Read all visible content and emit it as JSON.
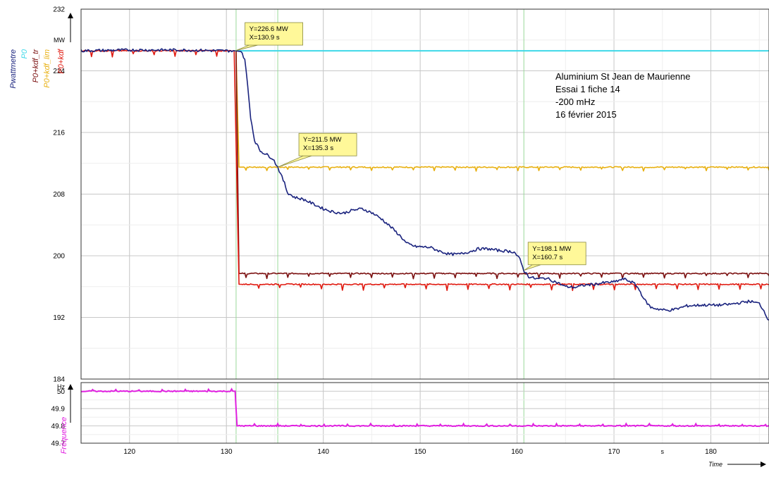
{
  "chart_data": [
    {
      "type": "line",
      "title": "",
      "ylabel": "MW",
      "xlabel": "",
      "xlim": [
        115,
        186
      ],
      "ylim": [
        184,
        232
      ],
      "y_ticks": [
        184,
        192,
        200,
        208,
        216,
        224,
        232
      ],
      "y_tick_labels": [
        "184",
        "192",
        "200",
        "208",
        "216",
        "224",
        "232"
      ],
      "grid": true,
      "legend_position": "left, vertical",
      "series": [
        {
          "name": "Pwattmetre",
          "color": "#1a237e",
          "points": [
            [
              115,
              226.6
            ],
            [
              120,
              226.7
            ],
            [
              125,
              226.7
            ],
            [
              130,
              226.6
            ],
            [
              130.9,
              226.6
            ],
            [
              131.5,
              226.5
            ],
            [
              131.9,
              225.5
            ],
            [
              132.2,
              222
            ],
            [
              132.5,
              218
            ],
            [
              132.9,
              215
            ],
            [
              133.5,
              213.6
            ],
            [
              134.2,
              213.1
            ],
            [
              134.8,
              212.6
            ],
            [
              135.3,
              211.5
            ],
            [
              135.6,
              210.6
            ],
            [
              136,
              209.4
            ],
            [
              136.3,
              208.2
            ],
            [
              137,
              207.6
            ],
            [
              138,
              207.3
            ],
            [
              139,
              206.7
            ],
            [
              140,
              206.1
            ],
            [
              141,
              205.7
            ],
            [
              142,
              205.5
            ],
            [
              143,
              205.9
            ],
            [
              144,
              206.1
            ],
            [
              145,
              205.6
            ],
            [
              146,
              204.8
            ],
            [
              147,
              203.7
            ],
            [
              148,
              202.5
            ],
            [
              148.6,
              201.6
            ],
            [
              149.5,
              201.2
            ],
            [
              151,
              201.1
            ],
            [
              152,
              200.6
            ],
            [
              153,
              200.2
            ],
            [
              154,
              200.2
            ],
            [
              155,
              200.5
            ],
            [
              156,
              200.9
            ],
            [
              157,
              200.9
            ],
            [
              158,
              200.7
            ],
            [
              159,
              200.6
            ],
            [
              159.7,
              200.5
            ],
            [
              160.3,
              199.5
            ],
            [
              160.7,
              198.1
            ],
            [
              161.2,
              197.3
            ],
            [
              162,
              197.0
            ],
            [
              163,
              197.1
            ],
            [
              164,
              196.6
            ],
            [
              165,
              196.0
            ],
            [
              166,
              195.9
            ],
            [
              167,
              196.2
            ],
            [
              168,
              196.3
            ],
            [
              169,
              196.5
            ],
            [
              170,
              196.6
            ],
            [
              171,
              197.0
            ],
            [
              172,
              196.5
            ],
            [
              172.5,
              195.8
            ],
            [
              173.2,
              194.2
            ],
            [
              173.8,
              193.3
            ],
            [
              174.5,
              193.1
            ],
            [
              175.5,
              192.9
            ],
            [
              176.5,
              193.1
            ],
            [
              177.5,
              193.5
            ],
            [
              179,
              193.6
            ],
            [
              181,
              193.6
            ],
            [
              182,
              193.7
            ],
            [
              183,
              193.9
            ],
            [
              184,
              194.1
            ],
            [
              185,
              193.8
            ],
            [
              185.6,
              192.6
            ],
            [
              186,
              191.5
            ]
          ]
        },
        {
          "name": "P0",
          "color": "#3ed8e8",
          "points": [
            [
              131,
              226.6
            ],
            [
              186,
              226.6
            ]
          ]
        },
        {
          "name": "P0+kdf_tr",
          "color": "#7b1010",
          "points": [
            [
              131,
              226.6
            ],
            [
              131.3,
              197.7
            ],
            [
              186,
              197.7
            ]
          ]
        },
        {
          "name": "P0+kdf_lim",
          "color": "#e8b010",
          "points": [
            [
              131,
              226.6
            ],
            [
              131.3,
              211.5
            ],
            [
              186,
              211.5
            ]
          ]
        },
        {
          "name": "P0+kdf",
          "color": "#e01a10",
          "points": [
            [
              115,
              226.6
            ],
            [
              130.8,
              226.6
            ],
            [
              131.3,
              196.3
            ],
            [
              186,
              196.3
            ]
          ]
        }
      ],
      "annotations": [
        {
          "x": 130.9,
          "y": 226.6,
          "lines": [
            "Y=226.6 MW",
            "X=130.9 s"
          ]
        },
        {
          "x": 135.3,
          "y": 211.5,
          "lines": [
            "Y=211.5 MW",
            "X=135.3 s"
          ]
        },
        {
          "x": 160.7,
          "y": 198.1,
          "lines": [
            "Y=198.1 MW",
            "X=160.7 s"
          ]
        }
      ],
      "cursor_lines_x": [
        131.0,
        135.3,
        160.7
      ],
      "note_lines": [
        "Aluminium St Jean de Maurienne",
        "Essai 1 fiche 14",
        "-200 mHz",
        "16 février 2015"
      ]
    },
    {
      "type": "line",
      "title": "",
      "ylabel": "Hz",
      "xlabel": "Time",
      "x_unit": "s",
      "xlim": [
        115,
        186
      ],
      "ylim": [
        49.7,
        50.05
      ],
      "y_ticks": [
        49.7,
        49.8,
        49.9,
        50
      ],
      "y_tick_labels": [
        "49.7",
        "49.8",
        "49.9",
        "50"
      ],
      "x_ticks": [
        120,
        130,
        140,
        150,
        160,
        170,
        180
      ],
      "x_tick_labels": [
        "120",
        "130",
        "140",
        "150",
        "160",
        "170",
        "180"
      ],
      "grid": true,
      "series": [
        {
          "name": "Fréquence",
          "color": "#e020e0",
          "points": [
            [
              115,
              50.0
            ],
            [
              130.9,
              50.0
            ],
            [
              131.1,
              49.8
            ],
            [
              186,
              49.8
            ]
          ]
        }
      ]
    }
  ]
}
